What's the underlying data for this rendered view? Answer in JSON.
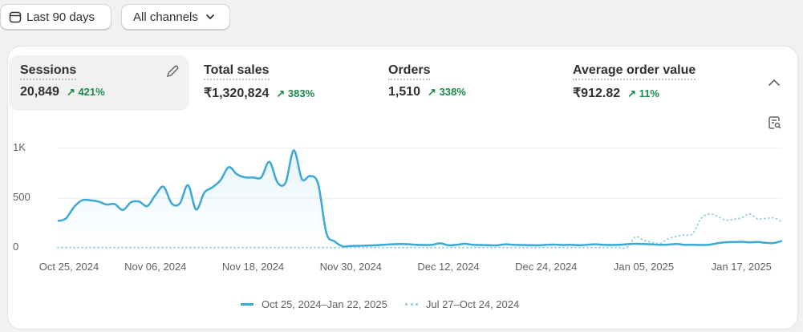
{
  "toolbar": {
    "date_range": "Last 90 days",
    "channel": "All channels"
  },
  "metrics": [
    {
      "label": "Sessions",
      "value": "20,849",
      "change": "421%"
    },
    {
      "label": "Total sales",
      "value": "₹1,320,824",
      "change": "383%"
    },
    {
      "label": "Orders",
      "value": "1,510",
      "change": "338%"
    },
    {
      "label": "Average order value",
      "value": "₹912.82",
      "change": "11%"
    }
  ],
  "colors": {
    "current": "#3aa9d6",
    "previous": "#9fd3e6",
    "positive": "#1a8a4a"
  },
  "chart_data": {
    "type": "line",
    "ylim": [
      0,
      1000
    ],
    "yticks": [
      "1K",
      "500",
      "0"
    ],
    "ytick_values": [
      1000,
      500,
      0
    ],
    "xticks": [
      "Oct 25, 2024",
      "Nov 06, 2024",
      "Nov 18, 2024",
      "Nov 30, 2024",
      "Dec 12, 2024",
      "Dec 24, 2024",
      "Jan 05, 2025",
      "Jan 17, 2025"
    ],
    "xtick_days": [
      0,
      12,
      24,
      36,
      48,
      60,
      72,
      84
    ],
    "legend": [
      "Oct 25, 2024–Jan 22, 2025",
      "Jul 27–Oct 24, 2024"
    ],
    "series": [
      {
        "name": "Oct 25, 2024–Jan 22, 2025",
        "style": "solid",
        "values": [
          270,
          295,
          410,
          478,
          478,
          465,
          435,
          440,
          380,
          458,
          465,
          420,
          530,
          614,
          446,
          446,
          630,
          385,
          554,
          608,
          680,
          811,
          740,
          708,
          708,
          708,
          865,
          657,
          657,
          981,
          690,
          722,
          640,
          150,
          65,
          15,
          18,
          20,
          22,
          25,
          30,
          35,
          38,
          36,
          30,
          28,
          30,
          45,
          25,
          30,
          40,
          30,
          28,
          26,
          25,
          35,
          30,
          28,
          27,
          25,
          30,
          32,
          28,
          30,
          26,
          30,
          35,
          30,
          28,
          30,
          36,
          40,
          38,
          35,
          30,
          32,
          38,
          30,
          30,
          28,
          30,
          45,
          55,
          58,
          60,
          55,
          58,
          50,
          48,
          70
        ]
      },
      {
        "name": "Jul 27–Oct 24, 2024",
        "style": "dotted",
        "values": [
          2,
          2,
          2,
          2,
          2,
          2,
          2,
          2,
          2,
          2,
          2,
          2,
          2,
          2,
          2,
          2,
          2,
          2,
          2,
          2,
          2,
          2,
          2,
          2,
          2,
          2,
          2,
          2,
          2,
          2,
          2,
          2,
          2,
          2,
          2,
          2,
          2,
          2,
          2,
          2,
          2,
          2,
          2,
          2,
          2,
          2,
          2,
          2,
          2,
          2,
          2,
          2,
          2,
          2,
          2,
          2,
          2,
          2,
          2,
          2,
          2,
          2,
          2,
          2,
          2,
          2,
          2,
          2,
          2,
          2,
          5,
          110,
          75,
          55,
          45,
          90,
          115,
          130,
          140,
          290,
          340,
          320,
          280,
          285,
          300,
          340,
          290,
          295,
          300,
          260
        ]
      }
    ]
  }
}
